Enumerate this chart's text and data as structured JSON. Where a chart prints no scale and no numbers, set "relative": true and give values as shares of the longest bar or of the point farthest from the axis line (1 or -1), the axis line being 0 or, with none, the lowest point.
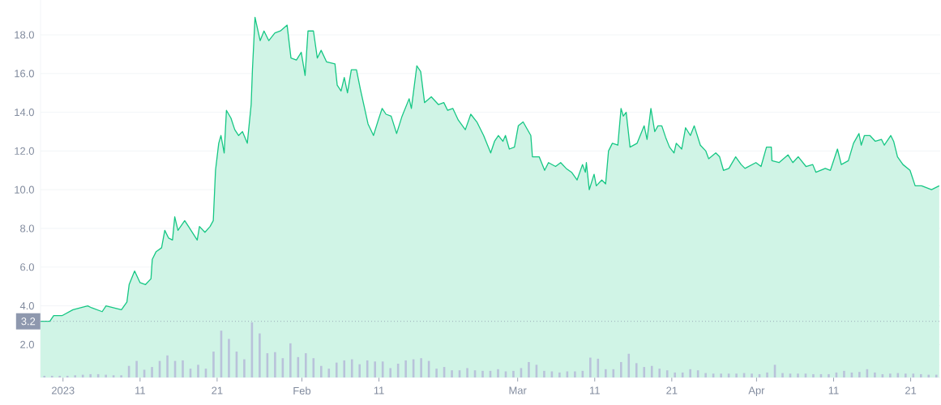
{
  "chart_data": [
    {
      "type": "area",
      "color": "#16c784",
      "grid": "y",
      "xlim": [
        "2022-12-29T02:00",
        "2023-04-24T20:00"
      ],
      "ylim": [
        0.3,
        19.8
      ],
      "xticks": [
        {
          "value": "2023-01-01",
          "label": "2023"
        },
        {
          "value": "2023-01-11",
          "label": "11"
        },
        {
          "value": "2023-01-21",
          "label": "21"
        },
        {
          "value": "2023-02-01",
          "label": "Feb"
        },
        {
          "value": "2023-02-11",
          "label": "11"
        },
        {
          "value": "2023-03-01",
          "label": "Mar"
        },
        {
          "value": "2023-03-11",
          "label": "11"
        },
        {
          "value": "2023-03-21",
          "label": "21"
        },
        {
          "value": "2023-04-01",
          "label": "Apr"
        },
        {
          "value": "2023-04-11",
          "label": "11"
        },
        {
          "value": "2023-04-21",
          "label": "21"
        }
      ],
      "yticks": [
        {
          "value": 2,
          "label": "2.0"
        },
        {
          "value": 4,
          "label": "4.0"
        },
        {
          "value": 6,
          "label": "6.0"
        },
        {
          "value": 8,
          "label": "8.0"
        },
        {
          "value": 10,
          "label": "10.0"
        },
        {
          "value": 12,
          "label": "12.0"
        },
        {
          "value": 14,
          "label": "14.0"
        },
        {
          "value": 16,
          "label": "16.0"
        },
        {
          "value": 18,
          "label": "18.0"
        }
      ],
      "ref_lines": [
        {
          "axis": "y",
          "value": 3.2,
          "label": "3.2",
          "color": "#8e98ae",
          "line_style": "dotted"
        }
      ],
      "x": [
        "2022-12-29T02:00",
        "2022-12-30T07:00",
        "2022-12-30T19:00",
        "2022-12-31T22:00",
        "2023-01-02T07:00",
        "2023-01-03T07:00",
        "2023-01-04T05:00",
        "2023-01-04T17:00",
        "2023-01-06T02:00",
        "2023-01-06T14:00",
        "2023-01-08T14:00",
        "2023-01-09T07:00",
        "2023-01-09T14:00",
        "2023-01-10T07:00",
        "2023-01-11T00:00",
        "2023-01-11T17:00",
        "2023-01-12T10:00",
        "2023-01-12T14:00",
        "2023-01-13T02:00",
        "2023-01-13T19:00",
        "2023-01-14T05:00",
        "2023-01-14T17:00",
        "2023-01-15T05:00",
        "2023-01-15T12:00",
        "2023-01-15T22:00",
        "2023-01-16T19:00",
        "2023-01-17T07:00",
        "2023-01-18T10:00",
        "2023-01-18T17:00",
        "2023-01-19T10:00",
        "2023-01-20T02:00",
        "2023-01-20T12:00",
        "2023-01-20T19:00",
        "2023-01-21T05:00",
        "2023-01-21T12:00",
        "2023-01-21T22:00",
        "2023-01-22T05:00",
        "2023-01-22T19:00",
        "2023-01-23T07:00",
        "2023-01-23T19:00",
        "2023-01-24T07:00",
        "2023-01-24T22:00",
        "2023-01-25T10:00",
        "2023-01-25T14:00",
        "2023-01-25T22:00",
        "2023-01-26T14:00",
        "2023-01-27T02:00",
        "2023-01-27T17:00",
        "2023-01-28T12:00",
        "2023-01-29T05:00",
        "2023-01-30T02:00",
        "2023-01-30T14:00",
        "2023-01-31T07:00",
        "2023-01-31T22:00",
        "2023-02-01T10:00",
        "2023-02-01T19:00",
        "2023-02-02T12:00",
        "2023-02-03T00:00",
        "2023-02-03T12:00",
        "2023-02-04T05:00",
        "2023-02-05T07:00",
        "2023-02-05T14:00",
        "2023-02-06T02:00",
        "2023-02-06T12:00",
        "2023-02-06T22:00",
        "2023-02-07T10:00",
        "2023-02-08T02:00",
        "2023-02-08T14:00",
        "2023-02-09T02:00",
        "2023-02-09T14:00",
        "2023-02-10T07:00",
        "2023-02-10T22:00",
        "2023-02-11T10:00",
        "2023-02-11T22:00",
        "2023-02-12T14:00",
        "2023-02-13T07:00",
        "2023-02-14T00:00",
        "2023-02-14T22:00",
        "2023-02-15T05:00",
        "2023-02-15T22:00",
        "2023-02-16T10:00",
        "2023-02-16T22:00",
        "2023-02-17T19:00",
        "2023-02-18T17:00",
        "2023-02-19T10:00",
        "2023-02-19T22:00",
        "2023-02-20T14:00",
        "2023-02-21T07:00",
        "2023-02-22T05:00",
        "2023-02-22T22:00",
        "2023-02-23T17:00",
        "2023-02-24T14:00",
        "2023-02-25T12:00",
        "2023-02-26T00:00",
        "2023-02-26T12:00",
        "2023-02-27T02:00",
        "2023-02-27T10:00",
        "2023-02-27T22:00",
        "2023-02-28T14:00",
        "2023-03-01T02:00",
        "2023-03-01T17:00",
        "2023-03-02T17:00",
        "2023-03-02T22:00",
        "2023-03-03T19:00",
        "2023-03-04T12:00",
        "2023-03-05T00:00",
        "2023-03-05T22:00",
        "2023-03-06T14:00",
        "2023-03-07T07:00",
        "2023-03-08T00:00",
        "2023-03-08T17:00",
        "2023-03-09T10:00",
        "2023-03-09T19:00",
        "2023-03-09T22:00",
        "2023-03-10T07:00",
        "2023-03-10T22:00",
        "2023-03-11T05:00",
        "2023-03-11T22:00",
        "2023-03-12T10:00",
        "2023-03-12T19:00",
        "2023-03-13T07:00",
        "2023-03-14T00:00",
        "2023-03-14T10:00",
        "2023-03-14T17:00",
        "2023-03-15T02:00",
        "2023-03-15T14:00",
        "2023-03-16T12:00",
        "2023-03-17T10:00",
        "2023-03-17T19:00",
        "2023-03-18T07:00",
        "2023-03-18T19:00",
        "2023-03-19T05:00",
        "2023-03-19T17:00",
        "2023-03-20T05:00",
        "2023-03-20T17:00",
        "2023-03-21T07:00",
        "2023-03-21T14:00",
        "2023-03-22T07:00",
        "2023-03-22T19:00",
        "2023-03-23T10:00",
        "2023-03-23T22:00",
        "2023-03-24T17:00",
        "2023-03-25T10:00",
        "2023-03-25T19:00",
        "2023-03-26T17:00",
        "2023-03-27T05:00",
        "2023-03-27T17:00",
        "2023-03-28T10:00",
        "2023-03-29T07:00",
        "2023-03-30T00:00",
        "2023-03-30T12:00",
        "2023-03-31T22:00",
        "2023-04-01T14:00",
        "2023-04-02T07:00",
        "2023-04-02T22:00",
        "2023-04-03T00:00",
        "2023-04-03T22:00",
        "2023-04-05T02:00",
        "2023-04-05T17:00",
        "2023-04-06T10:00",
        "2023-04-07T10:00",
        "2023-04-08T07:00",
        "2023-04-08T17:00",
        "2023-04-09T22:00",
        "2023-04-10T14:00",
        "2023-04-11T12:00",
        "2023-04-12T00:00",
        "2023-04-12T22:00",
        "2023-04-13T14:00",
        "2023-04-14T07:00",
        "2023-04-14T14:00",
        "2023-04-15T00:00",
        "2023-04-15T17:00",
        "2023-04-16T10:00",
        "2023-04-17T05:00",
        "2023-04-17T14:00",
        "2023-04-18T10:00",
        "2023-04-18T19:00",
        "2023-04-19T07:00",
        "2023-04-20T00:00",
        "2023-04-20T22:00",
        "2023-04-21T14:00",
        "2023-04-22T10:00",
        "2023-04-23T17:00",
        "2023-04-24T17:00"
      ],
      "values": [
        3.2,
        3.2,
        3.5,
        3.5,
        3.8,
        3.9,
        4.0,
        3.9,
        3.7,
        4.0,
        3.8,
        4.2,
        5.1,
        5.8,
        5.2,
        5.1,
        5.4,
        6.4,
        6.8,
        7.0,
        7.9,
        7.5,
        7.4,
        8.6,
        7.9,
        8.4,
        8.1,
        7.4,
        8.1,
        7.8,
        8.1,
        8.4,
        11.0,
        12.4,
        12.8,
        11.9,
        14.1,
        13.7,
        13.1,
        12.8,
        13.0,
        12.4,
        14.4,
        16.2,
        18.9,
        17.7,
        18.2,
        17.7,
        18.1,
        18.2,
        18.5,
        16.8,
        16.7,
        17.1,
        15.9,
        18.2,
        18.2,
        16.8,
        17.2,
        16.6,
        16.5,
        15.4,
        15.1,
        15.8,
        15.0,
        16.2,
        16.2,
        15.2,
        14.3,
        13.4,
        12.8,
        13.6,
        14.2,
        13.9,
        13.8,
        12.9,
        13.8,
        14.7,
        14.2,
        16.4,
        16.1,
        14.5,
        14.8,
        14.4,
        14.5,
        14.1,
        14.2,
        13.6,
        13.1,
        13.9,
        13.5,
        12.8,
        11.9,
        12.5,
        12.8,
        12.5,
        12.8,
        12.1,
        12.2,
        13.3,
        13.5,
        12.8,
        11.7,
        11.7,
        11.0,
        11.4,
        11.2,
        11.4,
        11.1,
        10.9,
        10.5,
        11.3,
        10.9,
        11.4,
        10.0,
        10.8,
        10.2,
        10.5,
        10.3,
        12.0,
        12.4,
        12.3,
        14.2,
        13.8,
        14.0,
        12.2,
        12.4,
        13.3,
        12.6,
        14.2,
        13.0,
        13.3,
        13.3,
        12.7,
        12.2,
        11.9,
        12.4,
        12.1,
        13.2,
        12.8,
        13.3,
        12.3,
        12.0,
        11.6,
        11.9,
        11.7,
        11.0,
        11.1,
        11.7,
        11.3,
        11.1,
        11.4,
        11.2,
        12.2,
        12.2,
        11.5,
        11.4,
        11.8,
        11.4,
        11.7,
        11.2,
        11.3,
        10.9,
        11.1,
        11.0,
        12.1,
        11.3,
        11.5,
        12.4,
        12.9,
        12.3,
        12.8,
        12.8,
        12.5,
        12.6,
        12.3,
        12.8,
        12.5,
        11.7,
        11.3,
        11.0,
        10.2,
        10.2,
        10.0,
        10.2
      ]
    },
    {
      "type": "bar",
      "relative": true,
      "tick_labels": false,
      "color": "#b9c2da",
      "categories": [
        null,
        null,
        null,
        null,
        null,
        null,
        null,
        null,
        null,
        null,
        null,
        null,
        null,
        null,
        null,
        null,
        null,
        null,
        null,
        null,
        null,
        null,
        null,
        null,
        null,
        null,
        null,
        null,
        null,
        null,
        null,
        null,
        null,
        null,
        null,
        null,
        null,
        null,
        null,
        null,
        null,
        null,
        null,
        null,
        null,
        null,
        null,
        null,
        null,
        null,
        null,
        null,
        null,
        null,
        null,
        null,
        null,
        null,
        null,
        null,
        null,
        null,
        null,
        null,
        null,
        null,
        null,
        null,
        null,
        null,
        null,
        null,
        null,
        null,
        null,
        null,
        null,
        null,
        null,
        null,
        null,
        null,
        null,
        null,
        null,
        null,
        null,
        null,
        null,
        null,
        null,
        null,
        null,
        null,
        null,
        null,
        null,
        null,
        null,
        null,
        null,
        null,
        null,
        null,
        null,
        null,
        null,
        null,
        null,
        null,
        null,
        null,
        null,
        null,
        null,
        null,
        null
      ],
      "values": [
        0.03,
        0.03,
        0.03,
        0.03,
        0.04,
        0.05,
        0.06,
        0.06,
        0.05,
        0.04,
        0.04,
        0.21,
        0.3,
        0.14,
        0.19,
        0.3,
        0.4,
        0.3,
        0.31,
        0.16,
        0.23,
        0.16,
        0.47,
        0.85,
        0.7,
        0.47,
        0.33,
        1.0,
        0.8,
        0.44,
        0.46,
        0.35,
        0.62,
        0.37,
        0.44,
        0.35,
        0.21,
        0.16,
        0.27,
        0.31,
        0.33,
        0.24,
        0.31,
        0.29,
        0.29,
        0.17,
        0.25,
        0.31,
        0.33,
        0.35,
        0.3,
        0.16,
        0.19,
        0.13,
        0.13,
        0.17,
        0.13,
        0.12,
        0.12,
        0.15,
        0.11,
        0.12,
        0.17,
        0.28,
        0.23,
        0.12,
        0.11,
        0.09,
        0.11,
        0.11,
        0.12,
        0.36,
        0.34,
        0.15,
        0.15,
        0.28,
        0.43,
        0.26,
        0.19,
        0.21,
        0.16,
        0.13,
        0.09,
        0.09,
        0.15,
        0.13,
        0.08,
        0.07,
        0.07,
        0.07,
        0.07,
        0.08,
        0.07,
        0.06,
        0.09,
        0.23,
        0.08,
        0.07,
        0.07,
        0.07,
        0.06,
        0.06,
        0.06,
        0.09,
        0.12,
        0.09,
        0.1,
        0.15,
        0.09,
        0.06,
        0.07,
        0.08,
        0.07,
        0.07,
        0.06,
        0.05,
        0.05
      ]
    }
  ]
}
